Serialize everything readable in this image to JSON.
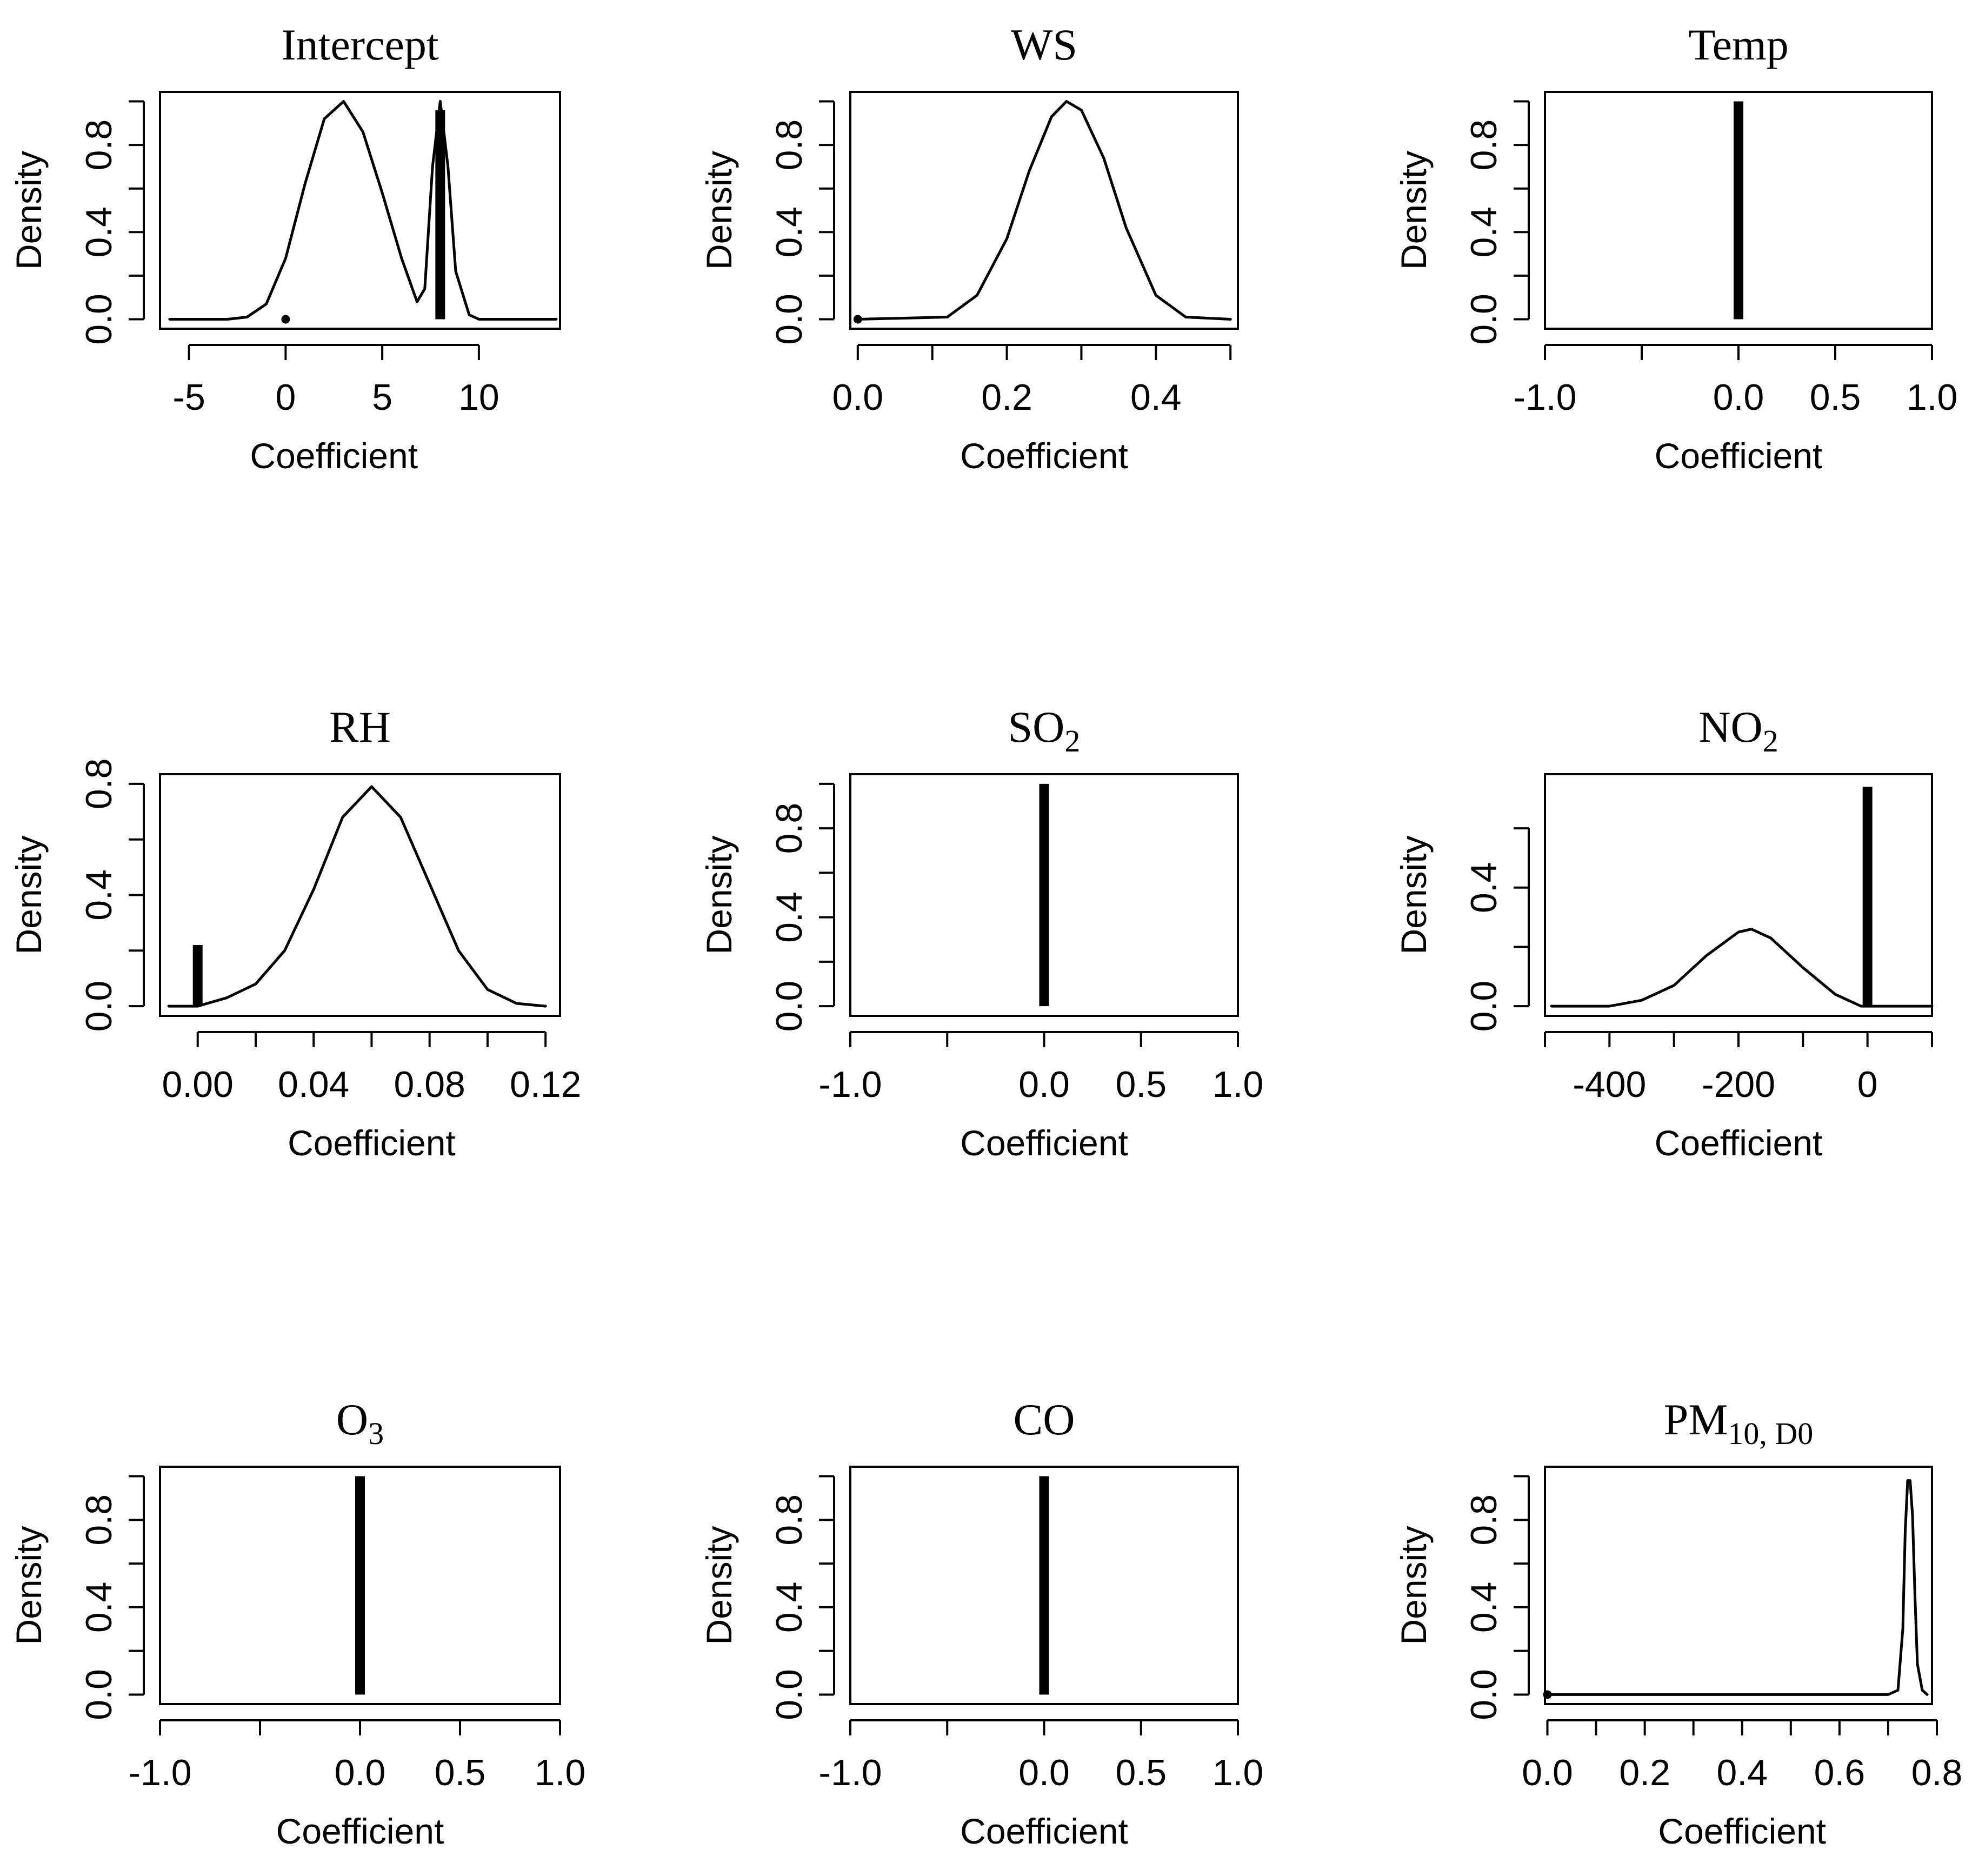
{
  "figure": {
    "description_free": true
  },
  "chart_data": [
    {
      "type": "line",
      "title": "Intercept",
      "xlabel": "Coefficient",
      "ylabel": "Density",
      "xlim": [
        -6.5,
        14.2
      ],
      "ylim": [
        0,
        1.0
      ],
      "xticks": [
        -5,
        0,
        5,
        10
      ],
      "xtick_labels": [
        "-5",
        "0",
        "5",
        "10"
      ],
      "yticks": [
        0,
        0.2,
        0.4,
        0.6,
        0.8,
        1.0
      ],
      "ytick_labels": [
        "0.0",
        "",
        "0.4",
        "",
        "0.8",
        ""
      ],
      "curve": {
        "x": [
          -6,
          -3,
          -2,
          -1,
          0,
          1,
          2,
          3,
          4,
          5,
          6,
          6.8,
          7.2,
          7.6,
          8,
          8.4,
          8.8,
          9.5,
          10,
          12,
          14
        ],
        "y": [
          0,
          0,
          0.01,
          0.07,
          0.28,
          0.62,
          0.92,
          1.0,
          0.86,
          0.58,
          0.28,
          0.08,
          0.14,
          0.7,
          1.0,
          0.7,
          0.22,
          0.02,
          0,
          0,
          0
        ]
      },
      "spikes": [
        {
          "x": 8.0,
          "height": 0.96
        }
      ],
      "points": [
        {
          "x": 0,
          "y": 0
        }
      ]
    },
    {
      "type": "line",
      "title": "WS",
      "xlabel": "Coefficient",
      "ylabel": "Density",
      "xlim": [
        -0.01,
        0.51
      ],
      "ylim": [
        0,
        1.0
      ],
      "xticks": [
        0,
        0.1,
        0.2,
        0.3,
        0.4,
        0.5
      ],
      "xtick_labels": [
        "0.0",
        "",
        "0.2",
        "",
        "0.4",
        ""
      ],
      "yticks": [
        0,
        0.2,
        0.4,
        0.6,
        0.8,
        1.0
      ],
      "ytick_labels": [
        "0.0",
        "",
        "0.4",
        "",
        "0.8",
        ""
      ],
      "curve": {
        "x": [
          0,
          0.12,
          0.16,
          0.2,
          0.23,
          0.26,
          0.28,
          0.3,
          0.33,
          0.36,
          0.4,
          0.44,
          0.5
        ],
        "y": [
          0,
          0.01,
          0.11,
          0.37,
          0.68,
          0.93,
          1.0,
          0.96,
          0.74,
          0.42,
          0.11,
          0.01,
          0
        ]
      },
      "spikes": [],
      "points": [
        {
          "x": 0,
          "y": 0
        }
      ]
    },
    {
      "type": "line",
      "title": "Temp",
      "xlabel": "Coefficient",
      "ylabel": "Density",
      "xlim": [
        -1.0,
        1.0
      ],
      "ylim": [
        0,
        1.0
      ],
      "xticks": [
        -1.0,
        -0.5,
        0.0,
        0.5,
        1.0
      ],
      "xtick_labels": [
        "-1.0",
        "",
        "0.0",
        "0.5",
        "1.0"
      ],
      "yticks": [
        0,
        0.2,
        0.4,
        0.6,
        0.8,
        1.0
      ],
      "ytick_labels": [
        "0.0",
        "",
        "0.4",
        "",
        "0.8",
        ""
      ],
      "curve": null,
      "spikes": [
        {
          "x": 0.0,
          "height": 1.0
        }
      ],
      "points": []
    },
    {
      "type": "line",
      "title": "RH",
      "xlabel": "Coefficient",
      "ylabel": "Density",
      "xlim": [
        -0.013,
        0.125
      ],
      "ylim": [
        0,
        0.8
      ],
      "xticks": [
        0,
        0.02,
        0.04,
        0.06,
        0.08,
        0.1,
        0.12
      ],
      "xtick_labels": [
        "0.00",
        "",
        "0.04",
        "",
        "0.08",
        "",
        "0.12"
      ],
      "yticks": [
        0,
        0.2,
        0.4,
        0.6,
        0.8
      ],
      "ytick_labels": [
        "0.0",
        "",
        "0.4",
        "",
        "0.8"
      ],
      "curve": {
        "x": [
          -0.01,
          0,
          0.01,
          0.02,
          0.03,
          0.04,
          0.05,
          0.06,
          0.07,
          0.08,
          0.09,
          0.1,
          0.11,
          0.12
        ],
        "y": [
          0,
          0,
          0.03,
          0.08,
          0.2,
          0.42,
          0.68,
          0.79,
          0.68,
          0.44,
          0.2,
          0.06,
          0.01,
          0
        ]
      },
      "spikes": [
        {
          "x": 0.0,
          "height": 0.22
        }
      ],
      "points": []
    },
    {
      "type": "line",
      "title": "SO",
      "title_sub": "2",
      "xlabel": "Coefficient",
      "ylabel": "Density",
      "xlim": [
        -1.0,
        1.0
      ],
      "ylim": [
        0,
        1.0
      ],
      "xticks": [
        -1.0,
        -0.5,
        0.0,
        0.5,
        1.0
      ],
      "xtick_labels": [
        "-1.0",
        "",
        "0.0",
        "0.5",
        "1.0"
      ],
      "yticks": [
        0,
        0.2,
        0.4,
        0.6,
        0.8,
        1.0
      ],
      "ytick_labels": [
        "0.0",
        "",
        "0.4",
        "",
        "0.8",
        ""
      ],
      "curve": null,
      "spikes": [
        {
          "x": 0.0,
          "height": 1.0
        }
      ],
      "points": []
    },
    {
      "type": "line",
      "title": "NO",
      "title_sub": "2",
      "xlabel": "Coefficient",
      "ylabel": "Density",
      "xlim": [
        -500,
        100
      ],
      "ylim": [
        0,
        0.75
      ],
      "xticks": [
        -500,
        -400,
        -300,
        -200,
        -100,
        0,
        100
      ],
      "xtick_labels": [
        "",
        "-400",
        "",
        "-200",
        "",
        "0",
        ""
      ],
      "yticks": [
        0,
        0.2,
        0.4,
        0.6
      ],
      "ytick_labels": [
        "0.0",
        "",
        "0.4",
        ""
      ],
      "curve": {
        "x": [
          -490,
          -400,
          -350,
          -300,
          -250,
          -200,
          -180,
          -150,
          -100,
          -50,
          -10,
          0,
          100
        ],
        "y": [
          0,
          0,
          0.02,
          0.07,
          0.17,
          0.25,
          0.26,
          0.23,
          0.13,
          0.04,
          0,
          0,
          0
        ]
      },
      "spikes": [
        {
          "x": 0.0,
          "height": 0.74
        }
      ],
      "points": []
    },
    {
      "type": "line",
      "title": "O",
      "title_sub": "3",
      "xlabel": "Coefficient",
      "ylabel": "Density",
      "xlim": [
        -1.0,
        1.0
      ],
      "ylim": [
        0,
        1.0
      ],
      "xticks": [
        -1.0,
        -0.5,
        0.0,
        0.5,
        1.0
      ],
      "xtick_labels": [
        "-1.0",
        "",
        "0.0",
        "0.5",
        "1.0"
      ],
      "yticks": [
        0,
        0.2,
        0.4,
        0.6,
        0.8,
        1.0
      ],
      "ytick_labels": [
        "0.0",
        "",
        "0.4",
        "",
        "0.8",
        ""
      ],
      "curve": null,
      "spikes": [
        {
          "x": 0.0,
          "height": 1.0
        }
      ],
      "points": []
    },
    {
      "type": "line",
      "title": "CO",
      "xlabel": "Coefficient",
      "ylabel": "Density",
      "xlim": [
        -1.0,
        1.0
      ],
      "ylim": [
        0,
        1.0
      ],
      "xticks": [
        -1.0,
        -0.5,
        0.0,
        0.5,
        1.0
      ],
      "xtick_labels": [
        "-1.0",
        "",
        "0.0",
        "0.5",
        "1.0"
      ],
      "yticks": [
        0,
        0.2,
        0.4,
        0.6,
        0.8,
        1.0
      ],
      "ytick_labels": [
        "0.0",
        "",
        "0.4",
        "",
        "0.8",
        ""
      ],
      "curve": null,
      "spikes": [
        {
          "x": 0.0,
          "height": 1.0
        }
      ],
      "points": []
    },
    {
      "type": "line",
      "title": "PM",
      "title_sub": "10, D0",
      "xlabel": "Coefficient",
      "ylabel": "Density",
      "xlim": [
        -0.005,
        0.79
      ],
      "ylim": [
        0,
        1.0
      ],
      "xticks": [
        0,
        0.1,
        0.2,
        0.3,
        0.4,
        0.5,
        0.6,
        0.7,
        0.8
      ],
      "xtick_labels": [
        "0.0",
        "",
        "0.2",
        "",
        "0.4",
        "",
        "0.6",
        "",
        "0.8"
      ],
      "yticks": [
        0,
        0.2,
        0.4,
        0.6,
        0.8,
        1.0
      ],
      "ytick_labels": [
        "0.0",
        "",
        "0.4",
        "",
        "0.8",
        ""
      ],
      "curve": {
        "x": [
          0,
          0.7,
          0.72,
          0.73,
          0.735,
          0.74,
          0.745,
          0.75,
          0.755,
          0.76,
          0.77,
          0.78
        ],
        "y": [
          0,
          0,
          0.02,
          0.3,
          0.75,
          0.98,
          0.98,
          0.82,
          0.45,
          0.14,
          0.02,
          0
        ]
      },
      "spikes": [],
      "points": [
        {
          "x": 0,
          "y": 0
        }
      ]
    }
  ]
}
